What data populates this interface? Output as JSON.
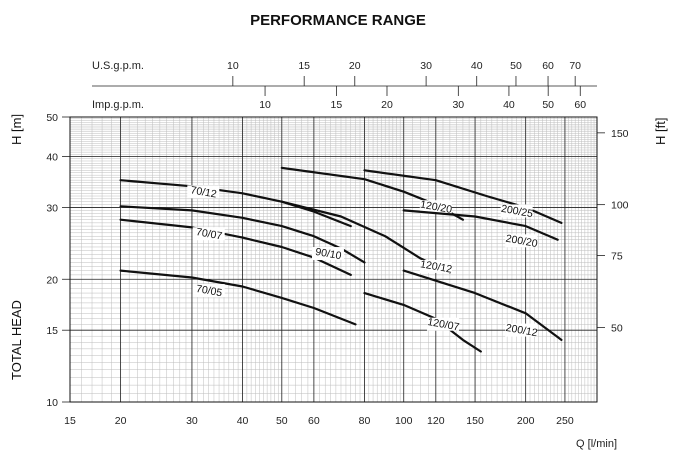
{
  "chart_data": {
    "type": "line",
    "title": "PERFORMANCE RANGE",
    "xlabel": "Q [l/min]",
    "ylabel": "TOTAL HEAD",
    "ylabel_left_unit": "H [m]",
    "ylabel_right_unit": "H [ft]",
    "x_scale": "log",
    "y_scale": "log",
    "xlim": [
      15,
      300
    ],
    "ylim": [
      10,
      50
    ],
    "x_ticks": [
      "15",
      "20",
      "30",
      "40",
      "50",
      "60",
      "80",
      "100",
      "120",
      "150",
      "200",
      "250"
    ],
    "y_ticks_left": [
      "10",
      "15",
      "20",
      "30",
      "40",
      "50"
    ],
    "y_ticks_right": [
      "50",
      "75",
      "100",
      "150"
    ],
    "usgpm_label": "U.S.g.p.m.",
    "usgpm_ticks": [
      "10",
      "15",
      "20",
      "30",
      "40",
      "50",
      "60",
      "70"
    ],
    "impgpm_label": "Imp.g.p.m.",
    "impgpm_ticks": [
      "10",
      "15",
      "20",
      "30",
      "40",
      "50",
      "60"
    ],
    "grid": true,
    "series": [
      {
        "name": "70/12",
        "points": [
          [
            20,
            35
          ],
          [
            30,
            33.8
          ],
          [
            40,
            32.5
          ],
          [
            50,
            31
          ],
          [
            60,
            29.3
          ],
          [
            74,
            27
          ]
        ],
        "label_at": [
          32,
          32.3
        ]
      },
      {
        "name": "70/07",
        "points": [
          [
            20,
            28
          ],
          [
            30,
            26.8
          ],
          [
            40,
            25.3
          ],
          [
            50,
            24
          ],
          [
            60,
            22.6
          ],
          [
            74,
            20.5
          ]
        ],
        "label_at": [
          33,
          25.5
        ]
      },
      {
        "name": "70/05",
        "points": [
          [
            20,
            21
          ],
          [
            30,
            20.2
          ],
          [
            40,
            19.2
          ],
          [
            50,
            18
          ],
          [
            60,
            17
          ],
          [
            76,
            15.5
          ]
        ],
        "label_at": [
          33,
          18.5
        ]
      },
      {
        "name": "90/10",
        "points": [
          [
            20,
            30.2
          ],
          [
            30,
            29.5
          ],
          [
            40,
            28.3
          ],
          [
            50,
            27
          ],
          [
            60,
            25.5
          ],
          [
            70,
            23.8
          ],
          [
            80,
            22
          ]
        ],
        "label_at": [
          65,
          22.8
        ]
      },
      {
        "name": "120/20",
        "points": [
          [
            50,
            37.5
          ],
          [
            80,
            35.2
          ],
          [
            100,
            32.8
          ],
          [
            120,
            30.5
          ],
          [
            140,
            28
          ]
        ],
        "label_at": [
          120,
          29.7
        ]
      },
      {
        "name": "120/12",
        "points": [
          [
            50,
            31
          ],
          [
            70,
            28.5
          ],
          [
            90,
            25.5
          ],
          [
            110,
            22.5
          ],
          [
            130,
            20.8
          ]
        ],
        "label_at": [
          120,
          21.2
        ]
      },
      {
        "name": "120/07",
        "points": [
          [
            80,
            18.5
          ],
          [
            100,
            17.3
          ],
          [
            120,
            16
          ],
          [
            140,
            14.2
          ],
          [
            155,
            13.3
          ]
        ],
        "label_at": [
          125,
          15.3
        ]
      },
      {
        "name": "200/25",
        "points": [
          [
            80,
            37
          ],
          [
            120,
            35
          ],
          [
            160,
            32
          ],
          [
            200,
            30
          ],
          [
            245,
            27.5
          ]
        ],
        "label_at": [
          190,
          29
        ]
      },
      {
        "name": "200/20",
        "points": [
          [
            100,
            29.5
          ],
          [
            150,
            28.5
          ],
          [
            200,
            27
          ],
          [
            240,
            25
          ]
        ],
        "label_at": [
          195,
          24.5
        ]
      },
      {
        "name": "200/12",
        "points": [
          [
            100,
            21
          ],
          [
            150,
            18.5
          ],
          [
            200,
            16.5
          ],
          [
            245,
            14.2
          ]
        ],
        "label_at": [
          195,
          14.8
        ]
      }
    ],
    "legend": "none"
  }
}
